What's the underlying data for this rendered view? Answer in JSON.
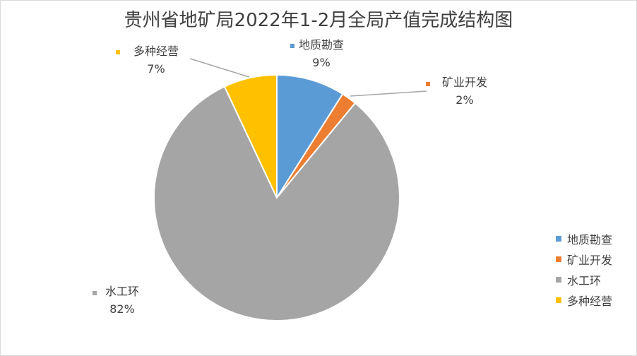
{
  "chart_data": {
    "type": "pie",
    "title": "贵州省地矿局2022年1-2月全局产值完成结构图",
    "categories": [
      "地质勘查",
      "矿业开发",
      "水工环",
      "多种经营"
    ],
    "values": [
      9,
      2,
      82,
      7
    ],
    "value_labels": [
      "9%",
      "2%",
      "82%",
      "7%"
    ],
    "colors": [
      "#5b9bd5",
      "#ed7d31",
      "#a5a5a5",
      "#ffc000"
    ],
    "legend_position": "right",
    "start_angle": "12 o'clock",
    "direction": "clockwise"
  }
}
